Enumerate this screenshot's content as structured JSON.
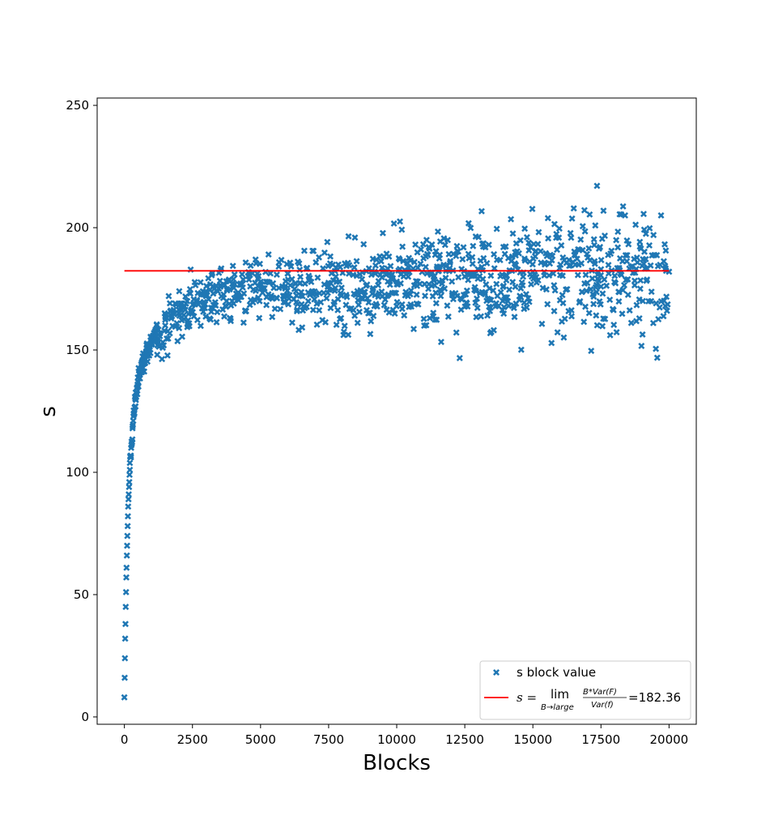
{
  "chart_data": {
    "type": "scatter",
    "title": "",
    "xlabel": "Blocks",
    "ylabel": "s",
    "xlim": [
      -1000,
      21000
    ],
    "ylim": [
      -3,
      253
    ],
    "xticks": [
      0,
      2500,
      5000,
      7500,
      10000,
      12500,
      15000,
      17500,
      20000
    ],
    "xtick_labels": [
      "0",
      "2500",
      "5000",
      "7500",
      "10000",
      "12500",
      "15000",
      "17500",
      "20000"
    ],
    "yticks": [
      0,
      50,
      100,
      150,
      200,
      250
    ],
    "ytick_labels": [
      "0",
      "50",
      "100",
      "150",
      "200",
      "250"
    ],
    "grid": false,
    "legend_position": "bottom-right",
    "colors": {
      "scatter": "#1f77b4",
      "limit_line": "#ff0000"
    },
    "series": [
      {
        "name": "s block value",
        "marker": "x-filled",
        "approx_description": "approximately 2000 points rising steeply from 8 to about 150 in the first 1000 blocks, then scattering around 160-200 with growing spread up to 20000 blocks",
        "sample_points": [
          [
            0,
            8
          ],
          [
            10,
            16
          ],
          [
            20,
            24
          ],
          [
            30,
            32
          ],
          [
            40,
            38
          ],
          [
            50,
            45
          ],
          [
            60,
            51
          ],
          [
            70,
            57
          ],
          [
            80,
            61
          ],
          [
            90,
            66
          ],
          [
            100,
            70
          ],
          [
            110,
            74
          ],
          [
            120,
            78
          ],
          [
            130,
            82
          ],
          [
            140,
            86
          ],
          [
            150,
            89
          ],
          [
            160,
            91
          ],
          [
            170,
            94
          ],
          [
            180,
            96
          ],
          [
            190,
            99
          ],
          [
            200,
            101
          ],
          [
            250,
            110
          ],
          [
            300,
            118
          ],
          [
            350,
            124
          ],
          [
            400,
            130
          ],
          [
            500,
            137
          ],
          [
            600,
            142
          ],
          [
            700,
            146
          ],
          [
            800,
            149
          ],
          [
            1000,
            153
          ],
          [
            1500,
            160
          ],
          [
            2000,
            165
          ],
          [
            3000,
            172
          ],
          [
            5000,
            175
          ],
          [
            7500,
            176
          ],
          [
            10000,
            178
          ],
          [
            12500,
            180
          ],
          [
            15000,
            182
          ],
          [
            17500,
            183
          ],
          [
            20000,
            182
          ]
        ]
      },
      {
        "name": "limit",
        "type": "line",
        "x": [
          0,
          20000
        ],
        "y": [
          182.36,
          182.36
        ]
      }
    ],
    "legend": {
      "scatter_label": "s block value",
      "line_prefix": "s =",
      "line_lim": "lim",
      "line_sub": "B→large",
      "line_num": "B*Var(F)",
      "line_den": "Var(f)",
      "line_value": "=182.36"
    }
  }
}
